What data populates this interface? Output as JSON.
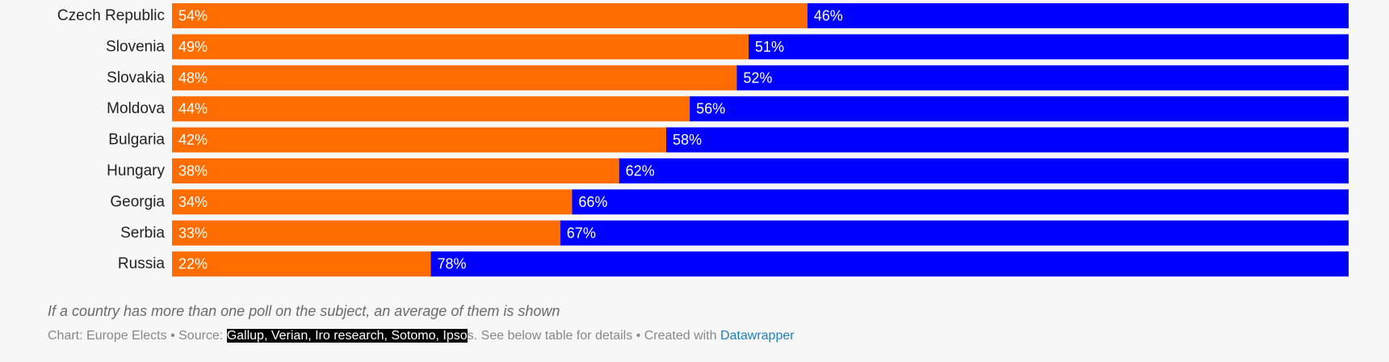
{
  "chart_data": {
    "type": "bar",
    "orientation": "horizontal",
    "stacked": true,
    "value_format": "percent",
    "categories": [
      "Czech Republic",
      "Slovenia",
      "Slovakia",
      "Moldova",
      "Bulgaria",
      "Hungary",
      "Georgia",
      "Serbia",
      "Russia"
    ],
    "series": [
      {
        "color": "#ff6d00",
        "values": [
          54,
          49,
          48,
          44,
          42,
          38,
          34,
          33,
          22
        ]
      },
      {
        "color": "#0000ff",
        "values": [
          46,
          51,
          52,
          56,
          58,
          62,
          66,
          67,
          78
        ]
      }
    ],
    "xlim": [
      0,
      100
    ],
    "grid": false,
    "legend": "none"
  },
  "notes": "If a country has more than one poll on the subject, an average of them is shown",
  "footer": {
    "chart_prefix": "Chart: Europe Elects • Source: ",
    "source_highlighted": "Gallup, Verian, Iro research, Sotomo, Ipso",
    "source_rest": "s. See below table for details • Created with ",
    "link_label": "Datawrapper"
  }
}
